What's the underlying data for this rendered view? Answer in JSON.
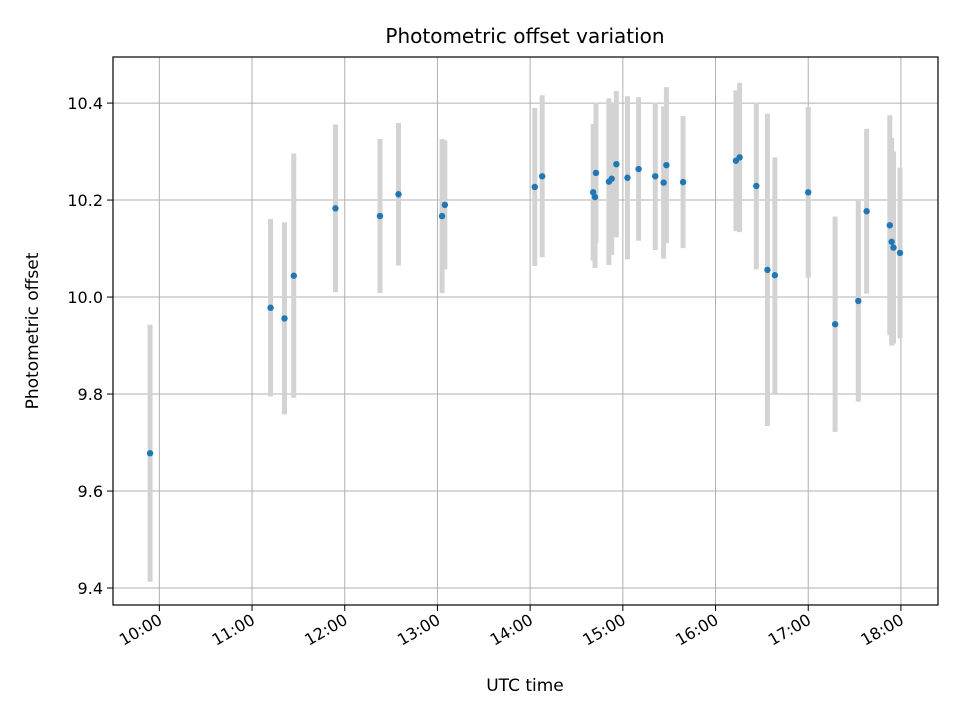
{
  "chart_data": {
    "type": "scatter",
    "title": "Photometric offset variation",
    "xlabel": "UTC time",
    "ylabel": "Photometric offset",
    "x_unit": "hours UTC",
    "xlim": [
      9.5,
      18.4
    ],
    "ylim": [
      9.365,
      10.495
    ],
    "x_ticks": [
      {
        "value": 10,
        "label": "10:00"
      },
      {
        "value": 11,
        "label": "11:00"
      },
      {
        "value": 12,
        "label": "12:00"
      },
      {
        "value": 13,
        "label": "13:00"
      },
      {
        "value": 14,
        "label": "14:00"
      },
      {
        "value": 15,
        "label": "15:00"
      },
      {
        "value": 16,
        "label": "16:00"
      },
      {
        "value": 17,
        "label": "17:00"
      },
      {
        "value": 18,
        "label": "18:00"
      }
    ],
    "y_ticks": [
      {
        "value": 9.4,
        "label": "9.4"
      },
      {
        "value": 9.6,
        "label": "9.6"
      },
      {
        "value": 9.8,
        "label": "9.8"
      },
      {
        "value": 10.0,
        "label": "10.0"
      },
      {
        "value": 10.2,
        "label": "10.2"
      },
      {
        "value": 10.4,
        "label": "10.4"
      }
    ],
    "grid": true,
    "point_color": "#1f77b4",
    "errorbar_color": "#d3d3d3",
    "points": [
      {
        "x": 9.9,
        "y": 9.678,
        "err": 0.265
      },
      {
        "x": 11.2,
        "y": 9.978,
        "err": 0.183
      },
      {
        "x": 11.35,
        "y": 9.956,
        "err": 0.198
      },
      {
        "x": 11.45,
        "y": 10.044,
        "err": 0.252
      },
      {
        "x": 11.9,
        "y": 10.183,
        "err": 0.173
      },
      {
        "x": 12.38,
        "y": 10.167,
        "err": 0.159
      },
      {
        "x": 12.58,
        "y": 10.212,
        "err": 0.147
      },
      {
        "x": 13.05,
        "y": 10.167,
        "err": 0.159
      },
      {
        "x": 13.08,
        "y": 10.19,
        "err": 0.133
      },
      {
        "x": 14.05,
        "y": 10.227,
        "err": 0.163
      },
      {
        "x": 14.13,
        "y": 10.249,
        "err": 0.167
      },
      {
        "x": 14.68,
        "y": 10.216,
        "err": 0.141
      },
      {
        "x": 14.7,
        "y": 10.206,
        "err": 0.146
      },
      {
        "x": 14.71,
        "y": 10.256,
        "err": 0.145
      },
      {
        "x": 14.85,
        "y": 10.238,
        "err": 0.172
      },
      {
        "x": 14.88,
        "y": 10.244,
        "err": 0.157
      },
      {
        "x": 14.93,
        "y": 10.274,
        "err": 0.151
      },
      {
        "x": 15.05,
        "y": 10.246,
        "err": 0.168
      },
      {
        "x": 15.17,
        "y": 10.264,
        "err": 0.148
      },
      {
        "x": 15.35,
        "y": 10.249,
        "err": 0.152
      },
      {
        "x": 15.44,
        "y": 10.236,
        "err": 0.157
      },
      {
        "x": 15.47,
        "y": 10.272,
        "err": 0.161
      },
      {
        "x": 15.65,
        "y": 10.237,
        "err": 0.136
      },
      {
        "x": 16.22,
        "y": 10.281,
        "err": 0.145
      },
      {
        "x": 16.26,
        "y": 10.288,
        "err": 0.154
      },
      {
        "x": 16.44,
        "y": 10.229,
        "err": 0.172
      },
      {
        "x": 16.56,
        "y": 10.056,
        "err": 0.322
      },
      {
        "x": 16.64,
        "y": 10.045,
        "err": 0.243
      },
      {
        "x": 17.0,
        "y": 10.216,
        "err": 0.176
      },
      {
        "x": 17.29,
        "y": 9.944,
        "err": 0.222
      },
      {
        "x": 17.54,
        "y": 9.992,
        "err": 0.208
      },
      {
        "x": 17.63,
        "y": 10.177,
        "err": 0.17
      },
      {
        "x": 17.88,
        "y": 10.148,
        "err": 0.227
      },
      {
        "x": 17.9,
        "y": 10.114,
        "err": 0.214
      },
      {
        "x": 17.92,
        "y": 10.102,
        "err": 0.198
      },
      {
        "x": 17.99,
        "y": 10.091,
        "err": 0.176
      }
    ]
  }
}
